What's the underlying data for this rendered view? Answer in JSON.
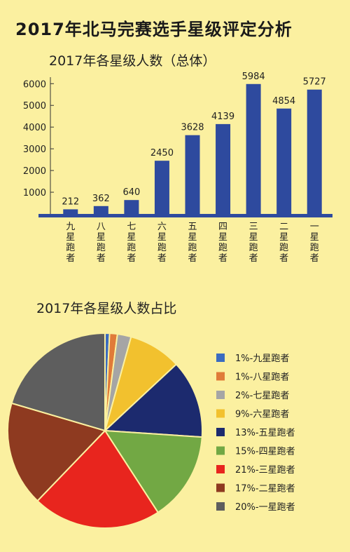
{
  "title": "2017年北马完赛选手星级评定分析",
  "chart_data": [
    {
      "type": "bar",
      "title": "2017年各星级人数（总体）",
      "categories": [
        "九星跑者",
        "八星跑者",
        "七星跑者",
        "六星跑者",
        "五星跑者",
        "四星跑者",
        "三星跑者",
        "二星跑者",
        "一星跑者"
      ],
      "values": [
        212,
        362,
        640,
        2450,
        3628,
        4139,
        5984,
        4854,
        5727
      ],
      "yticks": [
        1000,
        2000,
        3000,
        4000,
        5000,
        6000
      ],
      "ylim": [
        0,
        6300
      ],
      "bar_color": "#2E4A9E",
      "axis_color": "#2E4A9E"
    },
    {
      "type": "pie",
      "title": "2017年各星级人数占比",
      "labels": [
        "1%-九星跑者",
        "1%-八星跑者",
        "2%-七星跑者",
        "9%-六星跑者",
        "13%-五星跑者",
        "15%-四星跑者",
        "21%-三星跑者",
        "17%-二星跑者",
        "20%-一星跑者"
      ],
      "values": [
        212,
        362,
        640,
        2450,
        3628,
        4139,
        5984,
        4854,
        5727
      ],
      "colors": [
        "#3B6CC0",
        "#E07B39",
        "#A5A5A5",
        "#F2C12E",
        "#1C2A6E",
        "#72A844",
        "#E8251E",
        "#8E3A20",
        "#5E5E5E"
      ],
      "legend_position": "right"
    }
  ]
}
